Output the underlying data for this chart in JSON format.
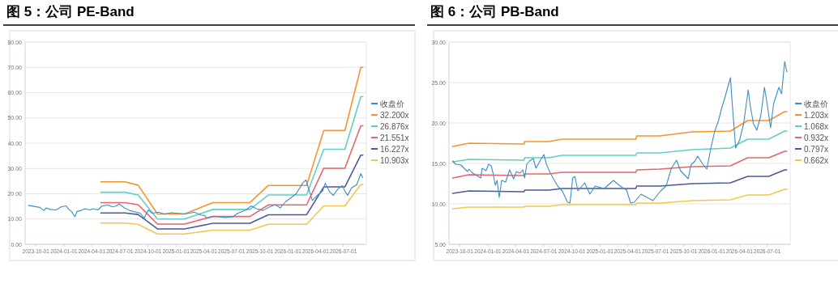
{
  "chart_data": [
    {
      "type": "line",
      "title": "图 5：公司 PE-Band",
      "xlim": [
        "2023-08-27",
        "2026-09-14"
      ],
      "xticks": [
        "2023-10-01",
        "2024-01-01",
        "2024-04-01",
        "2024-07-01",
        "2024-10-01",
        "2025-01-01",
        "2025-04-01",
        "2025-07-01",
        "2025-10-01",
        "2026-01-01",
        "2026-04-01",
        "2026-07-01"
      ],
      "ylim": [
        0,
        80
      ],
      "yticks": [
        {
          "value": 0,
          "label": "0.00"
        },
        {
          "value": 10,
          "label": "10.00"
        },
        {
          "value": 20,
          "label": "20.00"
        },
        {
          "value": 30,
          "label": "30.00"
        },
        {
          "value": 40,
          "label": "40.00"
        },
        {
          "value": 50,
          "label": "50.00"
        },
        {
          "value": 60,
          "label": "60.00"
        },
        {
          "value": 70,
          "label": "70.00"
        },
        {
          "value": 80,
          "label": "80.00"
        }
      ],
      "grid": "y",
      "legend": "right",
      "series": [
        {
          "name": "收盘价",
          "color": "#3b8fc0",
          "x": [
            "2023-09-07",
            "2023-10-14",
            "2023-10-27",
            "2023-11-04",
            "2023-11-17",
            "2023-12-05",
            "2023-12-13",
            "2023-12-22",
            "2024-01-08",
            "2024-01-17",
            "2024-01-25",
            "2024-02-06",
            "2024-02-12",
            "2024-02-25",
            "2024-03-09",
            "2024-03-26",
            "2024-04-04",
            "2024-04-21",
            "2024-05-04",
            "2024-05-25",
            "2024-06-07",
            "2024-06-20",
            "2024-06-29",
            "2024-07-16",
            "2024-08-02",
            "2024-08-24",
            "2024-09-06",
            "2024-09-19",
            "2024-10-02",
            "2024-10-15",
            "2024-11-05",
            "2024-11-22",
            "2024-12-18",
            "2025-01-30",
            "2025-03-02",
            "2025-03-23",
            "2025-04-05",
            "2025-04-09",
            "2025-05-05",
            "2025-06-09",
            "2025-07-05",
            "2025-07-22",
            "2025-08-17",
            "2025-09-03",
            "2025-09-20",
            "2025-10-12",
            "2025-11-02",
            "2025-11-20",
            "2025-12-07",
            "2025-12-24",
            "2026-01-11",
            "2026-01-28",
            "2026-02-18",
            "2026-03-01",
            "2026-03-12",
            "2026-03-22",
            "2026-04-07",
            "2026-04-24",
            "2026-05-03",
            "2026-05-16",
            "2026-05-29",
            "2026-06-15",
            "2026-06-28",
            "2026-07-06",
            "2026-07-15",
            "2026-07-28",
            "2026-08-14",
            "2026-08-27",
            "2026-09-02"
          ],
          "values": [
            15.4,
            14.6,
            13.4,
            14.4,
            13.8,
            13.6,
            14.1,
            14.8,
            15.2,
            13.8,
            13.0,
            10.9,
            13.0,
            13.4,
            14.1,
            13.6,
            14.1,
            13.6,
            15.2,
            15.5,
            14.8,
            15.2,
            16.0,
            14.4,
            13.4,
            12.7,
            12.3,
            10.4,
            13.6,
            12.3,
            12.7,
            12.0,
            12.5,
            12.0,
            12.7,
            11.6,
            11.4,
            10.4,
            11.1,
            10.6,
            10.9,
            12.3,
            13.6,
            15.2,
            14.1,
            13.4,
            14.8,
            15.7,
            14.4,
            16.8,
            18.4,
            20.0,
            24.2,
            25.5,
            21.0,
            17.3,
            19.4,
            21.0,
            24.2,
            21.0,
            19.4,
            22.1,
            23.2,
            21.0,
            19.4,
            22.3,
            23.7,
            28.0,
            26.4
          ]
        },
        {
          "name": "32.200x",
          "color": "#f7932f",
          "x": [
            "2024-04-30",
            "2024-07-18",
            "2024-08-30",
            "2024-11-01",
            "2025-01-28",
            "2025-05-01",
            "2025-08-30",
            "2025-10-29",
            "2026-03-03",
            "2026-04-28",
            "2026-07-06",
            "2026-08-27",
            "2026-09-03"
          ],
          "values": [
            24.7,
            24.7,
            23.4,
            12.0,
            12.0,
            16.5,
            16.5,
            23.3,
            23.3,
            45.0,
            45.0,
            70.0,
            70.0
          ]
        },
        {
          "name": "26.876x",
          "color": "#62cfc6",
          "x": [
            "2024-04-30",
            "2024-07-18",
            "2024-08-30",
            "2024-11-01",
            "2025-01-28",
            "2025-05-01",
            "2025-08-30",
            "2025-10-29",
            "2026-03-03",
            "2026-04-28",
            "2026-07-06",
            "2026-08-27",
            "2026-09-03"
          ],
          "values": [
            20.6,
            20.6,
            19.5,
            10.0,
            10.0,
            13.8,
            13.8,
            19.5,
            19.5,
            37.6,
            37.6,
            58.4,
            58.4
          ]
        },
        {
          "name": "21.551x",
          "color": "#e9646b",
          "x": [
            "2024-04-30",
            "2024-07-18",
            "2024-08-30",
            "2024-11-01",
            "2025-01-28",
            "2025-05-01",
            "2025-08-30",
            "2025-10-29",
            "2026-03-03",
            "2026-04-28",
            "2026-07-06",
            "2026-08-27",
            "2026-09-03"
          ],
          "values": [
            16.5,
            16.5,
            15.7,
            8.0,
            8.0,
            11.0,
            11.0,
            15.6,
            15.6,
            30.1,
            30.1,
            46.9,
            46.9
          ]
        },
        {
          "name": "16.227x",
          "color": "#4b5a99",
          "x": [
            "2024-04-30",
            "2024-07-18",
            "2024-08-30",
            "2024-11-01",
            "2025-01-28",
            "2025-05-01",
            "2025-08-30",
            "2025-10-29",
            "2026-03-03",
            "2026-04-28",
            "2026-07-06",
            "2026-08-27",
            "2026-09-03"
          ],
          "values": [
            12.4,
            12.4,
            11.8,
            6.1,
            6.1,
            8.3,
            8.3,
            11.7,
            11.7,
            22.7,
            22.7,
            35.3,
            35.3
          ]
        },
        {
          "name": "10.903x",
          "color": "#f2c84e",
          "x": [
            "2024-04-30",
            "2024-07-18",
            "2024-08-30",
            "2024-11-01",
            "2025-01-28",
            "2025-05-01",
            "2025-08-30",
            "2025-10-29",
            "2026-03-03",
            "2026-04-28",
            "2026-07-06",
            "2026-08-27",
            "2026-09-03"
          ],
          "values": [
            8.4,
            8.4,
            7.9,
            4.1,
            4.1,
            5.6,
            5.6,
            7.9,
            7.9,
            15.2,
            15.2,
            23.7,
            23.7
          ]
        }
      ]
    },
    {
      "type": "line",
      "title": "图 6：公司 PB-Band",
      "xlim": [
        "2023-08-27",
        "2026-09-14"
      ],
      "xticks": [
        "2023-10-01",
        "2024-01-01",
        "2024-04-01",
        "2024-07-01",
        "2024-10-01",
        "2025-01-01",
        "2025-04-01",
        "2025-07-01",
        "2025-10-01",
        "2026-01-01",
        "2026-04-01",
        "2026-07-01"
      ],
      "ylim": [
        5,
        30
      ],
      "yticks": [
        {
          "value": 5,
          "label": "5.00"
        },
        {
          "value": 10,
          "label": "10.00"
        },
        {
          "value": 15,
          "label": "15.00"
        },
        {
          "value": 20,
          "label": "20.00"
        },
        {
          "value": 25,
          "label": "25.00"
        },
        {
          "value": 30,
          "label": "30.00"
        }
      ],
      "grid": "y",
      "legend": "right",
      "series": [
        {
          "name": "收盘价",
          "color": "#3b8fc0",
          "x": [
            "2023-09-08",
            "2023-09-18",
            "2023-10-05",
            "2023-10-18",
            "2023-10-27",
            "2023-10-31",
            "2023-11-09",
            "2023-11-21",
            "2023-12-09",
            "2023-12-13",
            "2023-12-26",
            "2024-01-03",
            "2024-01-12",
            "2024-01-19",
            "2024-01-25",
            "2024-01-31",
            "2024-02-07",
            "2024-02-15",
            "2024-02-28",
            "2024-03-12",
            "2024-03-25",
            "2024-04-03",
            "2024-04-15",
            "2024-04-24",
            "2024-04-30",
            "2024-05-07",
            "2024-05-16",
            "2024-05-28",
            "2024-06-06",
            "2024-06-19",
            "2024-07-02",
            "2024-07-10",
            "2024-07-23",
            "2024-08-05",
            "2024-08-18",
            "2024-08-31",
            "2024-09-17",
            "2024-09-25",
            "2024-10-04",
            "2024-10-11",
            "2024-10-21",
            "2024-11-12",
            "2024-11-29",
            "2024-12-16",
            "2025-01-15",
            "2025-02-14",
            "2025-03-08",
            "2025-03-16",
            "2025-03-29",
            "2025-04-11",
            "2025-04-23",
            "2025-05-15",
            "2025-06-23",
            "2025-07-18",
            "2025-08-05",
            "2025-08-22",
            "2025-09-08",
            "2025-09-21",
            "2025-10-16",
            "2025-10-25",
            "2025-11-07",
            "2025-11-16",
            "2025-12-03",
            "2025-12-16",
            "2025-12-29",
            "2026-01-10",
            "2026-01-23",
            "2026-02-02",
            "2026-02-14",
            "2026-02-22",
            "2026-03-03",
            "2026-03-09",
            "2026-03-20",
            "2026-04-02",
            "2026-04-15",
            "2026-04-30",
            "2026-05-06",
            "2026-05-17",
            "2026-05-28",
            "2026-06-10",
            "2026-06-22",
            "2026-07-01",
            "2026-07-12",
            "2026-07-22",
            "2026-08-08",
            "2026-08-17",
            "2026-08-27",
            "2026-09-03"
          ],
          "values": [
            15.3,
            14.9,
            14.8,
            14.3,
            14.0,
            14.3,
            13.9,
            13.6,
            13.2,
            14.4,
            14.1,
            14.9,
            14.7,
            13.6,
            12.3,
            12.9,
            10.8,
            12.9,
            12.7,
            14.2,
            13.1,
            14.0,
            13.8,
            14.2,
            13.2,
            14.9,
            15.3,
            15.6,
            14.4,
            15.3,
            16.1,
            14.9,
            13.8,
            12.9,
            12.1,
            11.6,
            10.2,
            10.1,
            13.2,
            13.4,
            11.6,
            12.6,
            11.2,
            12.2,
            11.9,
            12.9,
            12.2,
            12.0,
            11.7,
            10.1,
            10.2,
            11.2,
            10.4,
            11.6,
            12.2,
            14.4,
            15.4,
            14.1,
            13.1,
            14.8,
            15.3,
            15.9,
            14.9,
            14.3,
            16.9,
            18.9,
            20.3,
            21.8,
            23.3,
            24.4,
            25.6,
            22.3,
            16.9,
            17.9,
            19.9,
            24.1,
            22.3,
            19.9,
            19.1,
            20.9,
            24.4,
            22.3,
            19.4,
            22.4,
            24.4,
            23.6,
            27.6,
            26.3
          ]
        },
        {
          "name": "1.203x",
          "color": "#f7932f",
          "x": [
            "2023-09-08",
            "2023-10-31",
            "2024-04-28",
            "2024-04-30",
            "2024-07-18",
            "2024-08-30",
            "2025-04-28",
            "2025-05-01",
            "2025-07-15",
            "2025-10-29",
            "2026-03-03",
            "2026-04-28",
            "2026-07-06",
            "2026-08-27",
            "2026-09-03"
          ],
          "values": [
            17.1,
            17.5,
            17.4,
            17.7,
            17.7,
            18.0,
            18.0,
            18.4,
            18.4,
            18.9,
            19.0,
            20.3,
            20.3,
            21.4,
            21.4
          ]
        },
        {
          "name": "1.068x",
          "color": "#62cfc6",
          "x": [
            "2023-09-08",
            "2023-10-31",
            "2024-04-28",
            "2024-04-30",
            "2024-07-18",
            "2024-08-30",
            "2025-04-28",
            "2025-05-01",
            "2025-07-15",
            "2025-10-29",
            "2026-03-03",
            "2026-04-28",
            "2026-07-06",
            "2026-08-27",
            "2026-09-03"
          ],
          "values": [
            15.2,
            15.5,
            15.4,
            15.7,
            15.7,
            16.0,
            16.0,
            16.3,
            16.3,
            16.7,
            16.9,
            18.0,
            18.0,
            19.0,
            19.0
          ]
        },
        {
          "name": "0.932x",
          "color": "#e9646b",
          "x": [
            "2023-09-08",
            "2023-10-31",
            "2024-04-28",
            "2024-04-30",
            "2024-07-18",
            "2024-08-30",
            "2025-04-28",
            "2025-05-01",
            "2025-07-15",
            "2025-10-29",
            "2026-03-03",
            "2026-04-28",
            "2026-07-06",
            "2026-08-27",
            "2026-09-03"
          ],
          "values": [
            13.2,
            13.6,
            13.5,
            13.7,
            13.7,
            13.9,
            13.9,
            14.2,
            14.3,
            14.6,
            14.7,
            15.7,
            15.7,
            16.5,
            16.5
          ]
        },
        {
          "name": "0.797x",
          "color": "#4b5a99",
          "x": [
            "2023-09-08",
            "2023-10-31",
            "2024-04-28",
            "2024-04-30",
            "2024-07-18",
            "2024-08-30",
            "2025-04-28",
            "2025-05-01",
            "2025-07-15",
            "2025-10-29",
            "2026-03-03",
            "2026-04-28",
            "2026-07-06",
            "2026-08-27",
            "2026-09-03"
          ],
          "values": [
            11.3,
            11.6,
            11.5,
            11.7,
            11.7,
            11.9,
            11.9,
            12.2,
            12.2,
            12.5,
            12.6,
            13.4,
            13.4,
            14.2,
            14.2
          ]
        },
        {
          "name": "0.662x",
          "color": "#f2c84e",
          "x": [
            "2023-09-08",
            "2023-10-31",
            "2024-04-28",
            "2024-04-30",
            "2024-07-18",
            "2024-08-30",
            "2025-04-28",
            "2025-05-01",
            "2025-07-15",
            "2025-10-29",
            "2026-03-03",
            "2026-04-28",
            "2026-07-06",
            "2026-08-27",
            "2026-09-03"
          ],
          "values": [
            9.4,
            9.6,
            9.6,
            9.7,
            9.7,
            9.9,
            9.9,
            10.1,
            10.1,
            10.4,
            10.5,
            11.1,
            11.1,
            11.8,
            11.8
          ]
        }
      ]
    }
  ]
}
